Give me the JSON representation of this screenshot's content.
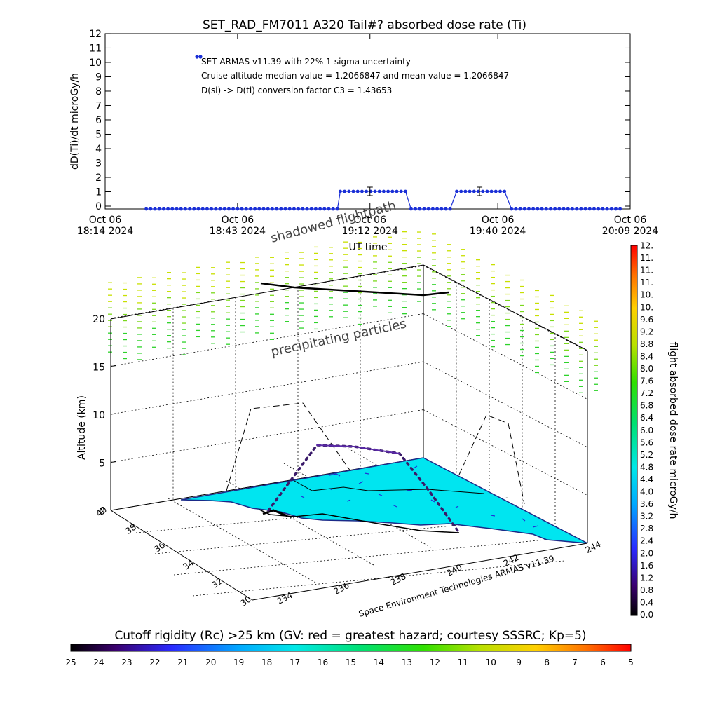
{
  "top_chart": {
    "title": "SET_RAD_FM7011  A320 Tail#? absorbed dose rate (Ti)",
    "ylabel": "dD(Ti)/dt microGy/h",
    "xlabel": "UT time",
    "annotations": [
      "SET ARMAS v11.39 with 22% 1-sigma uncertainty",
      "Cruise altitude median value = 1.2066847 and mean value = 1.2066847",
      "D(si) -> D(ti) conversion factor C3 = 1.43653"
    ]
  },
  "chart_data": [
    {
      "type": "scatter",
      "title": "SET_RAD_FM7011  A320 Tail#? absorbed dose rate (Ti)",
      "xlabel": "UT time",
      "ylabel": "dD(Ti)/dt microGy/h",
      "ylim": [
        0,
        12
      ],
      "yticks": [
        0,
        1,
        2,
        3,
        4,
        5,
        6,
        7,
        8,
        9,
        10,
        11,
        12
      ],
      "xlim": [
        "18:14",
        "20:09"
      ],
      "xticks": [
        {
          "time": "18:14",
          "line1": "Oct 06",
          "line2": "18:14 2024"
        },
        {
          "time": "18:43",
          "line1": "Oct 06",
          "line2": "18:43 2024"
        },
        {
          "time": "19:12",
          "line1": "Oct 06",
          "line2": "19:12 2024"
        },
        {
          "time": "19:40",
          "line1": "Oct 06",
          "line2": "19:40 2024"
        },
        {
          "time": "20:09",
          "line1": "Oct 06",
          "line2": "20:09 2024"
        }
      ],
      "legend_marker": {
        "x": "18:25",
        "y": 10.5
      },
      "series": [
        {
          "color": "#1a2fd6",
          "segments": [
            {
              "from": "18:23",
              "to": "19:05",
              "y": 0.1
            },
            {
              "from": "19:05.5",
              "to": "19:20",
              "y": 1.2
            },
            {
              "from": "19:21",
              "to": "19:30",
              "y": 0.1
            },
            {
              "from": "19:31",
              "to": "19:42",
              "y": 1.2
            },
            {
              "from": "19:43",
              "to": "20:07",
              "y": 0.1
            }
          ]
        }
      ],
      "error_bars": [
        {
          "x": "19:12",
          "y": 1.2,
          "err": 0.27
        },
        {
          "x": "19:36",
          "y": 1.2,
          "err": 0.27
        }
      ]
    },
    {
      "type": "scatter",
      "title": "",
      "zlabel": "Altitude (km)",
      "zticks": [
        0,
        5,
        10,
        15,
        20
      ],
      "lat_ticks": [
        30,
        32,
        34,
        36,
        38,
        40
      ],
      "lon_ticks": [
        234,
        236,
        238,
        240,
        242,
        244
      ],
      "flight_profile": {
        "climb_to_km": 7,
        "cruise_km": 7,
        "descent_to_km": 0
      },
      "caption": "Space Environment Technologies ARMAS v11.39"
    }
  ],
  "overlay_labels": {
    "shadowed": "shadowed flightpath",
    "precip": "precipitating particles",
    "credit": "Space Environment Technologies ARMAS v11.39"
  },
  "axis3d": {
    "zlabel": "Altitude (km)",
    "zticks": [
      "0",
      "5",
      "10",
      "15",
      "20"
    ],
    "lat_ticks": [
      "30",
      "32",
      "34",
      "36",
      "38",
      "40"
    ],
    "lon_ticks": [
      "234",
      "236",
      "238",
      "240",
      "242",
      "244"
    ]
  },
  "dose_colorbar": {
    "label": "flight absorbed dose rate microGy/h",
    "ticks": [
      "0.0",
      "0.4",
      "0.8",
      "1.2",
      "1.6",
      "2.0",
      "2.4",
      "2.8",
      "3.2",
      "3.6",
      "4.0",
      "4.4",
      "4.8",
      "5.2",
      "5.6",
      "6.0",
      "6.4",
      "6.8",
      "7.2",
      "7.6",
      "8.0",
      "8.4",
      "8.8",
      "9.2",
      "9.6",
      "10.",
      "10.",
      "11.",
      "11.",
      "11.",
      "12."
    ]
  },
  "cutoff_colorbar": {
    "label": "Cutoff rigidity (Rc) >25 km (GV: red = greatest hazard; courtesy SSSRC; Kp=5)",
    "ticks": [
      "25",
      "24",
      "23",
      "22",
      "21",
      "20",
      "19",
      "18",
      "17",
      "16",
      "15",
      "14",
      "13",
      "12",
      "11",
      "10",
      "9",
      "8",
      "7",
      "6",
      "5"
    ]
  },
  "colors": {
    "data": "#1a2fd6",
    "surface": "#00e5f0",
    "precip_dash": "#9bd21c",
    "flight_track": "#3a1a6a"
  }
}
